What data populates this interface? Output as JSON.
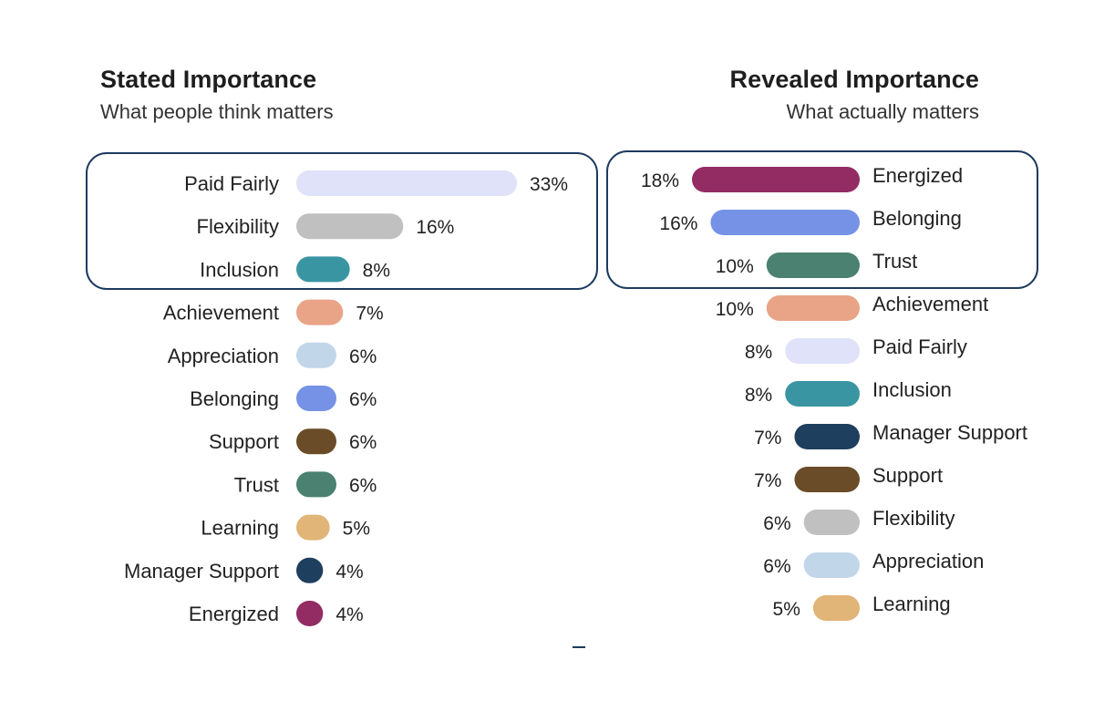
{
  "chart_data": [
    {
      "type": "bar",
      "orientation": "horizontal",
      "title": "Stated Importance",
      "subtitle": "What people think matters",
      "highlight_top": 3,
      "series": [
        {
          "label": "Paid Fairly",
          "value": 33,
          "display": "33%",
          "color": "#dfe2f8"
        },
        {
          "label": "Flexibility",
          "value": 16,
          "display": "16%",
          "color": "#c0c0c0"
        },
        {
          "label": "Inclusion",
          "value": 8,
          "display": "8%",
          "color": "#3a95a3"
        },
        {
          "label": "Achievement",
          "value": 7,
          "display": "7%",
          "color": "#e9a487"
        },
        {
          "label": "Appreciation",
          "value": 6,
          "display": "6%",
          "color": "#c2d6ea"
        },
        {
          "label": "Belonging",
          "value": 6,
          "display": "6%",
          "color": "#7592e6"
        },
        {
          "label": "Support",
          "value": 6,
          "display": "6%",
          "color": "#6a4c28"
        },
        {
          "label": "Trust",
          "value": 6,
          "display": "6%",
          "color": "#4a8170"
        },
        {
          "label": "Learning",
          "value": 5,
          "display": "5%",
          "color": "#e1b477"
        },
        {
          "label": "Manager Support",
          "value": 4,
          "display": "4%",
          "color": "#1f3f5e"
        },
        {
          "label": "Energized",
          "value": 4,
          "display": "4%",
          "color": "#922c63"
        }
      ]
    },
    {
      "type": "bar",
      "orientation": "horizontal",
      "title": "Revealed Importance",
      "subtitle": "What actually matters",
      "highlight_top": 3,
      "series": [
        {
          "label": "Energized",
          "value": 18,
          "display": "18%",
          "color": "#922c63"
        },
        {
          "label": "Belonging",
          "value": 16,
          "display": "16%",
          "color": "#7592e6"
        },
        {
          "label": "Trust",
          "value": 10,
          "display": "10%",
          "color": "#4a8170"
        },
        {
          "label": "Achievement",
          "value": 10,
          "display": "10%",
          "color": "#e9a487"
        },
        {
          "label": "Paid Fairly",
          "value": 8,
          "display": "8%",
          "color": "#dfe2f8"
        },
        {
          "label": "Inclusion",
          "value": 8,
          "display": "8%",
          "color": "#3a95a3"
        },
        {
          "label": "Manager Support",
          "value": 7,
          "display": "7%",
          "color": "#1f3f5e"
        },
        {
          "label": "Support",
          "value": 7,
          "display": "7%",
          "color": "#6a4c28"
        },
        {
          "label": "Flexibility",
          "value": 6,
          "display": "6%",
          "color": "#c0c0c0"
        },
        {
          "label": "Appreciation",
          "value": 6,
          "display": "6%",
          "color": "#c2d6ea"
        },
        {
          "label": "Learning",
          "value": 5,
          "display": "5%",
          "color": "#e1b477"
        }
      ]
    }
  ],
  "colors": {
    "highlight_border": "#1d3a5f",
    "text": "#222222",
    "accent_mark": "#1d3a5f"
  }
}
